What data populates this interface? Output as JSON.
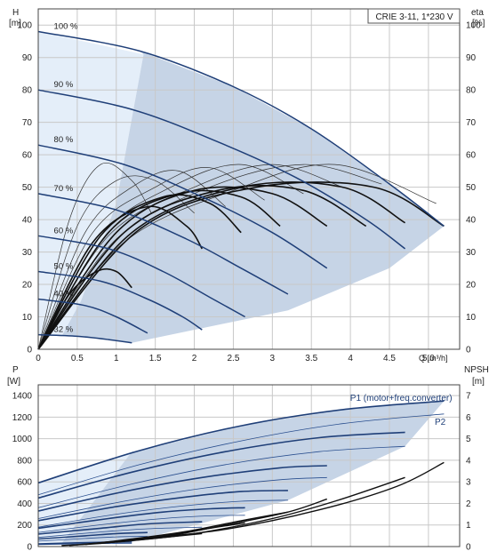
{
  "title_box": "CRIE 3-11, 1*230 V",
  "chart_data": [
    {
      "type": "line",
      "name": "head",
      "ylabel_left": "H",
      "yunit_left": "[m]",
      "ylabel_right": "eta",
      "yunit_right": "[%]",
      "xlabel": "Q [m³/h]",
      "xlim": [
        0,
        5.4
      ],
      "ylim": [
        0,
        105
      ],
      "y2lim": [
        0,
        105
      ],
      "xticks": [
        "0",
        "0.5",
        "1",
        "1.5",
        "2",
        "2.5",
        "3",
        "3.5",
        "4",
        "4.5",
        "5.0"
      ],
      "yticks": [
        "0",
        "10",
        "20",
        "30",
        "40",
        "50",
        "60",
        "70",
        "80",
        "90",
        "100"
      ],
      "y2ticks": [
        "0",
        "10",
        "20",
        "30",
        "40",
        "50",
        "60",
        "70",
        "80",
        "90",
        "100"
      ],
      "grid": true,
      "region_color": "#c6d4e6",
      "region_light_color": "#e4eef9",
      "speed_curves": [
        {
          "label": "100 %",
          "x": [
            0,
            1.3,
            2.5,
            3.5,
            4.5,
            5.2
          ],
          "y": [
            98,
            92,
            81,
            68,
            51,
            38
          ]
        },
        {
          "label": "90 %",
          "x": [
            0,
            1.2,
            2.3,
            3.3,
            4.2,
            4.7
          ],
          "y": [
            80,
            74,
            64,
            53,
            40,
            31
          ]
        },
        {
          "label": "80 %",
          "x": [
            0,
            1.1,
            2.1,
            3.0,
            3.7
          ],
          "y": [
            63,
            57,
            47,
            36,
            25
          ]
        },
        {
          "label": "70 %",
          "x": [
            0,
            1.0,
            1.9,
            2.6,
            3.2
          ],
          "y": [
            48,
            43,
            34,
            25,
            17
          ]
        },
        {
          "label": "60 %",
          "x": [
            0,
            0.9,
            1.6,
            2.2,
            2.65
          ],
          "y": [
            35,
            31,
            24,
            16,
            10
          ]
        },
        {
          "label": "50 %",
          "x": [
            0,
            0.8,
            1.4,
            1.85,
            2.1
          ],
          "y": [
            24,
            21,
            15.5,
            10,
            6
          ]
        },
        {
          "label": "40 %",
          "x": [
            0,
            0.6,
            1.0,
            1.4
          ],
          "y": [
            15.5,
            13.5,
            10,
            5
          ]
        },
        {
          "label": "32 %",
          "x": [
            0,
            0.5,
            0.9,
            1.2
          ],
          "y": [
            4.5,
            4,
            3,
            2
          ]
        }
      ],
      "efficiency_curves_light": [
        {
          "x": [
            0,
            0.4,
            0.8,
            1.2,
            1.45
          ],
          "y": [
            0,
            40,
            57,
            52,
            42
          ]
        },
        {
          "x": [
            0,
            0.5,
            1.0,
            1.5,
            2.0
          ],
          "y": [
            0,
            38,
            52,
            52,
            42
          ]
        },
        {
          "x": [
            0,
            0.6,
            1.2,
            1.8,
            2.4
          ],
          "y": [
            0,
            36,
            50,
            55,
            44
          ]
        },
        {
          "x": [
            0,
            0.7,
            1.5,
            2.2,
            2.9
          ],
          "y": [
            0,
            36,
            50,
            56,
            46
          ]
        },
        {
          "x": [
            0,
            0.8,
            1.7,
            2.6,
            3.4
          ],
          "y": [
            0,
            35,
            50,
            57,
            48
          ]
        },
        {
          "x": [
            0,
            0.9,
            2.0,
            3.0,
            3.9
          ],
          "y": [
            0,
            35,
            50,
            57,
            50
          ]
        },
        {
          "x": [
            0,
            1.0,
            2.2,
            3.4,
            4.4
          ],
          "y": [
            0,
            34,
            50,
            57,
            51
          ]
        },
        {
          "x": [
            0,
            1.1,
            2.5,
            3.8,
            5.1
          ],
          "y": [
            0,
            33,
            49,
            57,
            45
          ]
        }
      ],
      "efficiency_curves_dark": [
        {
          "x": [
            0,
            0.4,
            0.75,
            1.0,
            1.2
          ],
          "y": [
            0,
            17,
            24,
            24,
            19
          ]
        },
        {
          "x": [
            0,
            0.7,
            1.4,
            1.9,
            2.1
          ],
          "y": [
            0,
            33,
            44,
            38,
            31
          ]
        },
        {
          "x": [
            0,
            0.8,
            1.6,
            2.2,
            2.6
          ],
          "y": [
            0,
            35,
            47,
            45,
            36
          ]
        },
        {
          "x": [
            0,
            0.9,
            1.8,
            2.6,
            3.1
          ],
          "y": [
            0,
            36,
            48,
            47,
            38
          ]
        },
        {
          "x": [
            0,
            1.0,
            2.0,
            3.0,
            3.7
          ],
          "y": [
            0,
            36,
            49,
            48,
            38
          ]
        },
        {
          "x": [
            0,
            1.1,
            2.3,
            3.4,
            4.2
          ],
          "y": [
            0,
            36,
            49,
            49,
            38
          ]
        },
        {
          "x": [
            0,
            1.2,
            2.6,
            3.9,
            4.7
          ],
          "y": [
            0,
            36,
            50,
            50,
            39
          ]
        },
        {
          "x": [
            0,
            1.3,
            2.8,
            4.3,
            5.2
          ],
          "y": [
            0,
            37,
            50,
            50,
            38
          ]
        }
      ]
    },
    {
      "type": "line",
      "name": "power-npsh",
      "ylabel_left": "P",
      "yunit_left": "[W]",
      "ylabel_right": "NPSH",
      "yunit_right": "[m]",
      "xlim": [
        0,
        5.4
      ],
      "ylim": [
        0,
        1500
      ],
      "y2lim": [
        0,
        7.5
      ],
      "yticks": [
        "0",
        "200",
        "400",
        "600",
        "800",
        "1000",
        "1200",
        "1400"
      ],
      "y2ticks": [
        "0",
        "1",
        "2",
        "3",
        "4",
        "5",
        "6",
        "7"
      ],
      "grid": true,
      "annotations": [
        {
          "text": "P1 (motor+freq.converter)",
          "x": 4.65,
          "y": 1350
        },
        {
          "text": "P2",
          "x": 5.15,
          "y": 1130
        }
      ],
      "p1_curves": [
        {
          "x": [
            0,
            1.3,
            2.6,
            3.9,
            5.2
          ],
          "y": [
            590,
            890,
            1120,
            1270,
            1350
          ]
        },
        {
          "x": [
            0,
            1.2,
            2.4,
            3.6,
            4.7
          ],
          "y": [
            450,
            690,
            880,
            1010,
            1060
          ]
        },
        {
          "x": [
            0,
            1.1,
            2.1,
            3.1,
            3.7
          ],
          "y": [
            330,
            510,
            640,
            730,
            750
          ]
        },
        {
          "x": [
            0,
            1.0,
            1.9,
            2.6,
            3.2
          ],
          "y": [
            240,
            370,
            460,
            510,
            520
          ]
        },
        {
          "x": [
            0,
            0.9,
            1.6,
            2.2,
            2.65
          ],
          "y": [
            170,
            260,
            320,
            350,
            360
          ]
        },
        {
          "x": [
            0,
            0.8,
            1.4,
            2.1
          ],
          "y": [
            115,
            170,
            210,
            230
          ]
        },
        {
          "x": [
            0,
            0.6,
            1.0,
            1.4
          ],
          "y": [
            70,
            100,
            120,
            130
          ]
        },
        {
          "x": [
            0,
            0.5,
            0.9,
            1.2
          ],
          "y": [
            25,
            35,
            40,
            42
          ]
        }
      ],
      "p2_curves": [
        {
          "x": [
            0,
            1.3,
            2.6,
            3.9,
            5.2
          ],
          "y": [
            480,
            760,
            980,
            1140,
            1230
          ]
        },
        {
          "x": [
            0,
            1.2,
            2.4,
            3.6,
            4.7
          ],
          "y": [
            360,
            580,
            760,
            880,
            930
          ]
        },
        {
          "x": [
            0,
            1.1,
            2.1,
            3.1,
            3.7
          ],
          "y": [
            260,
            420,
            540,
            620,
            640
          ]
        },
        {
          "x": [
            0,
            1.0,
            1.9,
            2.6,
            3.2
          ],
          "y": [
            180,
            300,
            380,
            420,
            430
          ]
        },
        {
          "x": [
            0,
            0.9,
            1.6,
            2.2,
            2.65
          ],
          "y": [
            130,
            210,
            260,
            285,
            290
          ]
        },
        {
          "x": [
            0,
            0.8,
            1.4,
            2.1
          ],
          "y": [
            85,
            135,
            165,
            180
          ]
        },
        {
          "x": [
            0,
            0.6,
            1.0,
            1.4
          ],
          "y": [
            50,
            75,
            90,
            95
          ]
        },
        {
          "x": [
            0,
            0.5,
            0.9,
            1.2
          ],
          "y": [
            18,
            25,
            28,
            30
          ]
        }
      ],
      "npsh_curves": [
        {
          "x": [
            1.2,
            2.4,
            3.6,
            4.6,
            5.2
          ],
          "y": [
            0.3,
            0.8,
            1.7,
            2.8,
            3.9
          ]
        },
        {
          "x": [
            1.0,
            2.0,
            3.0,
            3.8,
            4.7
          ],
          "y": [
            0.2,
            0.6,
            1.3,
            2.1,
            3.2
          ]
        },
        {
          "x": [
            0.8,
            1.6,
            2.4,
            3.2,
            3.7
          ],
          "y": [
            0.15,
            0.45,
            1.0,
            1.6,
            2.2
          ]
        },
        {
          "x": [
            0.6,
            1.2,
            1.9,
            2.6,
            3.2
          ],
          "y": [
            0.1,
            0.35,
            0.7,
            1.2,
            1.6
          ]
        },
        {
          "x": [
            0.4,
            1.0,
            1.6,
            2.2,
            2.65
          ],
          "y": [
            0.05,
            0.25,
            0.5,
            0.85,
            1.1
          ]
        },
        {
          "x": [
            0.3,
            0.8,
            1.4,
            2.1
          ],
          "y": [
            0.05,
            0.15,
            0.35,
            0.6
          ]
        }
      ]
    }
  ]
}
